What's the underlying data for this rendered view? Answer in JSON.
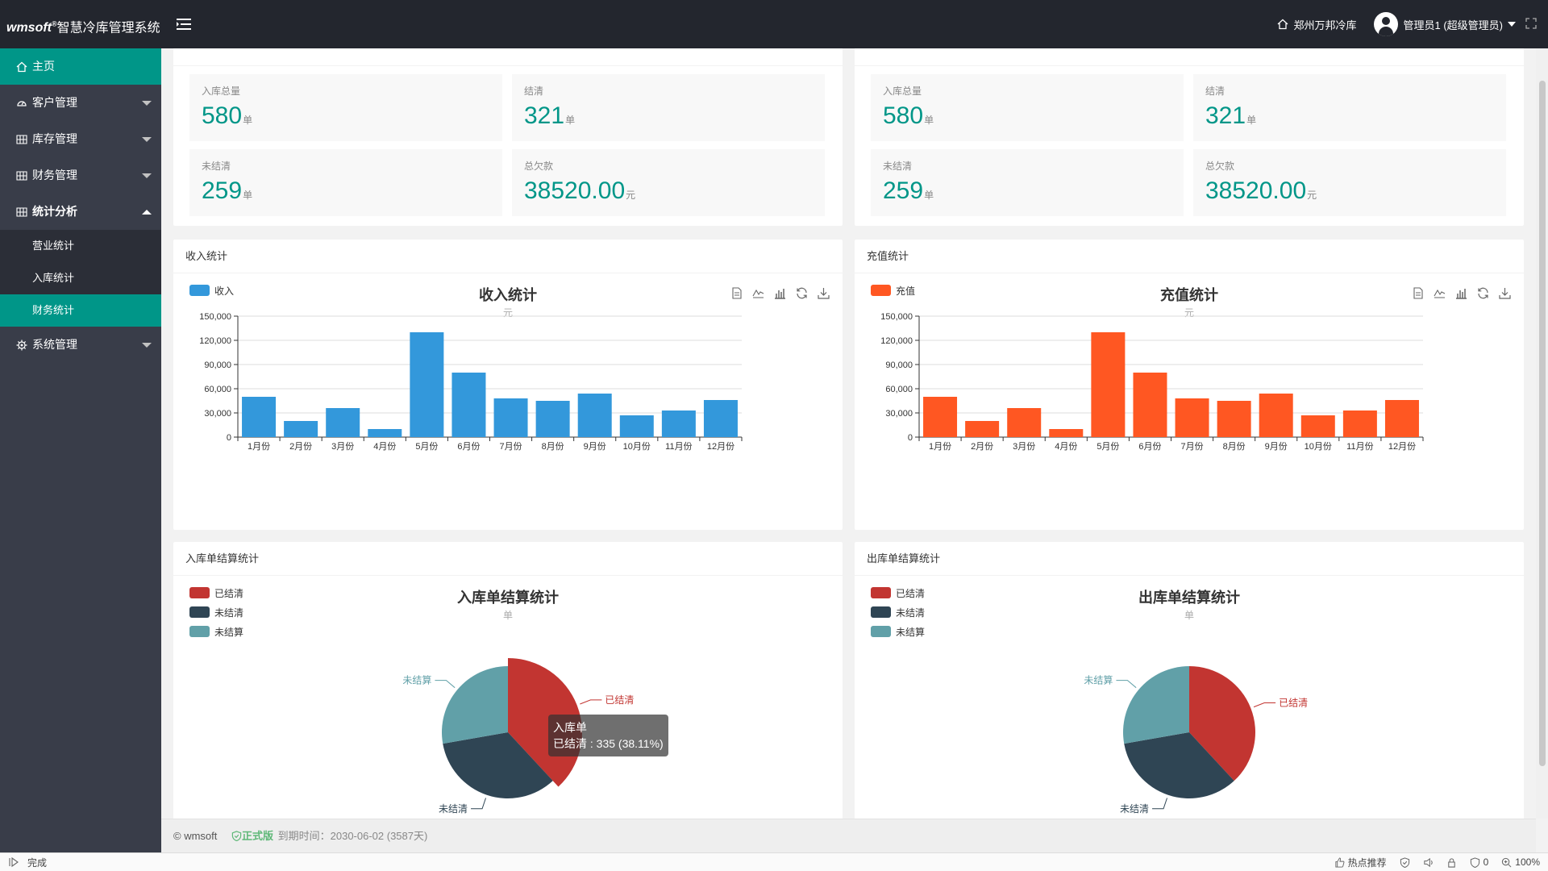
{
  "header": {
    "brand": "wmsoft",
    "brand_sup": "®",
    "system_name": "智慧冷库管理系统",
    "warehouse": "郑州万邦冷库",
    "user": "管理员1 (超级管理员)"
  },
  "sidebar": {
    "home": "主页",
    "items": [
      {
        "label": "客户管理"
      },
      {
        "label": "库存管理"
      },
      {
        "label": "财务管理"
      },
      {
        "label": "统计分析"
      },
      {
        "label": "系统管理"
      }
    ],
    "sub_items": [
      {
        "label": "营业统计"
      },
      {
        "label": "入库统计"
      },
      {
        "label": "财务统计"
      }
    ]
  },
  "stats_left": {
    "cards": [
      {
        "label": "入库总量",
        "value": "580",
        "unit": "单"
      },
      {
        "label": "结清",
        "value": "321",
        "unit": "单"
      },
      {
        "label": "未结清",
        "value": "259",
        "unit": "单"
      },
      {
        "label": "总欠款",
        "value": "38520.00",
        "unit": "元"
      }
    ]
  },
  "stats_right": {
    "cards": [
      {
        "label": "入库总量",
        "value": "580",
        "unit": "单"
      },
      {
        "label": "结清",
        "value": "321",
        "unit": "单"
      },
      {
        "label": "未结清",
        "value": "259",
        "unit": "单"
      },
      {
        "label": "总欠款",
        "value": "38520.00",
        "unit": "元"
      }
    ]
  },
  "income_panel": {
    "title": "收入统计"
  },
  "recharge_panel": {
    "title": "充值统计"
  },
  "inbound_panel": {
    "title": "入库单结算统计"
  },
  "outbound_panel": {
    "title": "出库单结算统计"
  },
  "colors": {
    "income": "#3398db",
    "recharge": "#ff5722",
    "settled": "#c23531",
    "unsettled": "#2f4554",
    "unbilled": "#61a0a8",
    "accent": "#009688"
  },
  "chart_data": [
    {
      "type": "bar",
      "title": "收入统计",
      "subtitle": "元",
      "legend": "收入",
      "categories": [
        "1月份",
        "2月份",
        "3月份",
        "4月份",
        "5月份",
        "6月份",
        "7月份",
        "8月份",
        "9月份",
        "10月份",
        "11月份",
        "12月份"
      ],
      "values": [
        50000,
        20000,
        36000,
        10000,
        130000,
        80000,
        48000,
        45000,
        54000,
        27000,
        33000,
        46000
      ],
      "y_ticks": [
        "0",
        "30,000",
        "60,000",
        "90,000",
        "120,000",
        "150,000"
      ],
      "ylim": [
        0,
        150000
      ],
      "grid": true
    },
    {
      "type": "bar",
      "title": "充值统计",
      "subtitle": "元",
      "legend": "充值",
      "categories": [
        "1月份",
        "2月份",
        "3月份",
        "4月份",
        "5月份",
        "6月份",
        "7月份",
        "8月份",
        "9月份",
        "10月份",
        "11月份",
        "12月份"
      ],
      "values": [
        50000,
        20000,
        36000,
        10000,
        130000,
        80000,
        48000,
        45000,
        54000,
        27000,
        33000,
        46000
      ],
      "y_ticks": [
        "0",
        "30,000",
        "60,000",
        "90,000",
        "120,000",
        "150,000"
      ],
      "ylim": [
        0,
        150000
      ],
      "grid": true
    },
    {
      "type": "pie",
      "title": "入库单结算统计",
      "subtitle": "单",
      "labels": [
        "已结清",
        "未结清",
        "未结算"
      ],
      "values": [
        335,
        300,
        244
      ],
      "tooltip": {
        "series": "入库单",
        "text": "已结清 : 335 (38.11%)"
      }
    },
    {
      "type": "pie",
      "title": "出库单结算统计",
      "subtitle": "单",
      "labels": [
        "已结清",
        "未结清",
        "未结算"
      ],
      "values": [
        335,
        300,
        244
      ]
    }
  ],
  "footer": {
    "copyright": "© wmsoft",
    "version": "正式版",
    "expire": "到期时间：2030-06-02 (3587天)"
  },
  "statusbar": {
    "status": "完成",
    "hot": "热点推荐",
    "shield_count": "0",
    "zoom": "100%"
  }
}
